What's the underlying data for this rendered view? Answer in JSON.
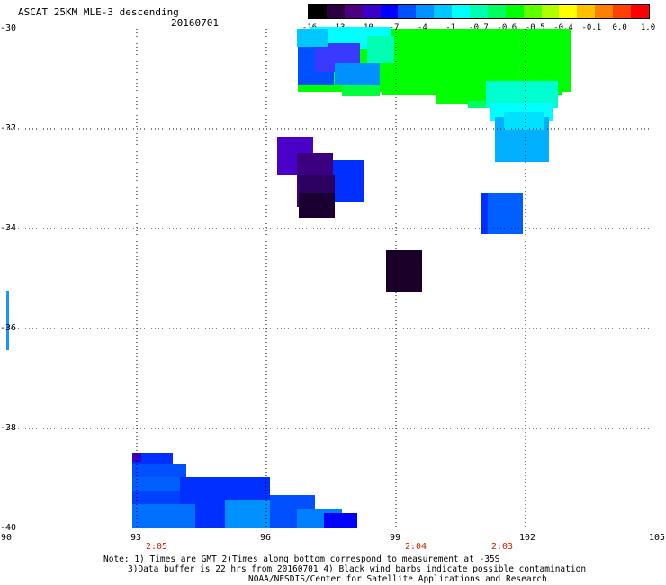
{
  "header": {
    "title": "ASCAT 25KM MLE-3 descending",
    "date": "20160701"
  },
  "colorbar": {
    "labels": [
      "-16",
      "-13",
      "-10",
      "-7",
      "-4",
      "-1",
      "-0.7",
      "-0.6",
      "-0.5",
      "-0.4",
      "-0.1",
      "0.0",
      "1.0"
    ],
    "colors": [
      "#000000",
      "#2a0040",
      "#4b0082",
      "#3a00c8",
      "#0000ff",
      "#0050ff",
      "#0090ff",
      "#00c8ff",
      "#00ffff",
      "#00ffb0",
      "#00ff60",
      "#00ff00",
      "#60ff00",
      "#b0ff00",
      "#ffff00",
      "#ffc000",
      "#ff8000",
      "#ff4000",
      "#ff0000"
    ]
  },
  "axes": {
    "lat_labels": [
      "-30",
      "-32",
      "-34",
      "-36",
      "-38",
      "-40"
    ],
    "lon_labels": [
      "90",
      "93",
      "96",
      "99",
      "102",
      "105"
    ],
    "time_labels": [
      {
        "text": "2:05",
        "lon": 93
      },
      {
        "text": "2:04",
        "lon": 99
      },
      {
        "text": "2:03",
        "lon": 101
      }
    ]
  },
  "notes": [
    "Note: 1) Times are GMT 2)Times along bottom correspond to measurement at -35S",
    "3)Data buffer is 22 hrs from 20160701 4) Black wind barbs indicate possible contamination",
    "NOAA/NESDIS/Center for Satellite Applications and Research"
  ]
}
